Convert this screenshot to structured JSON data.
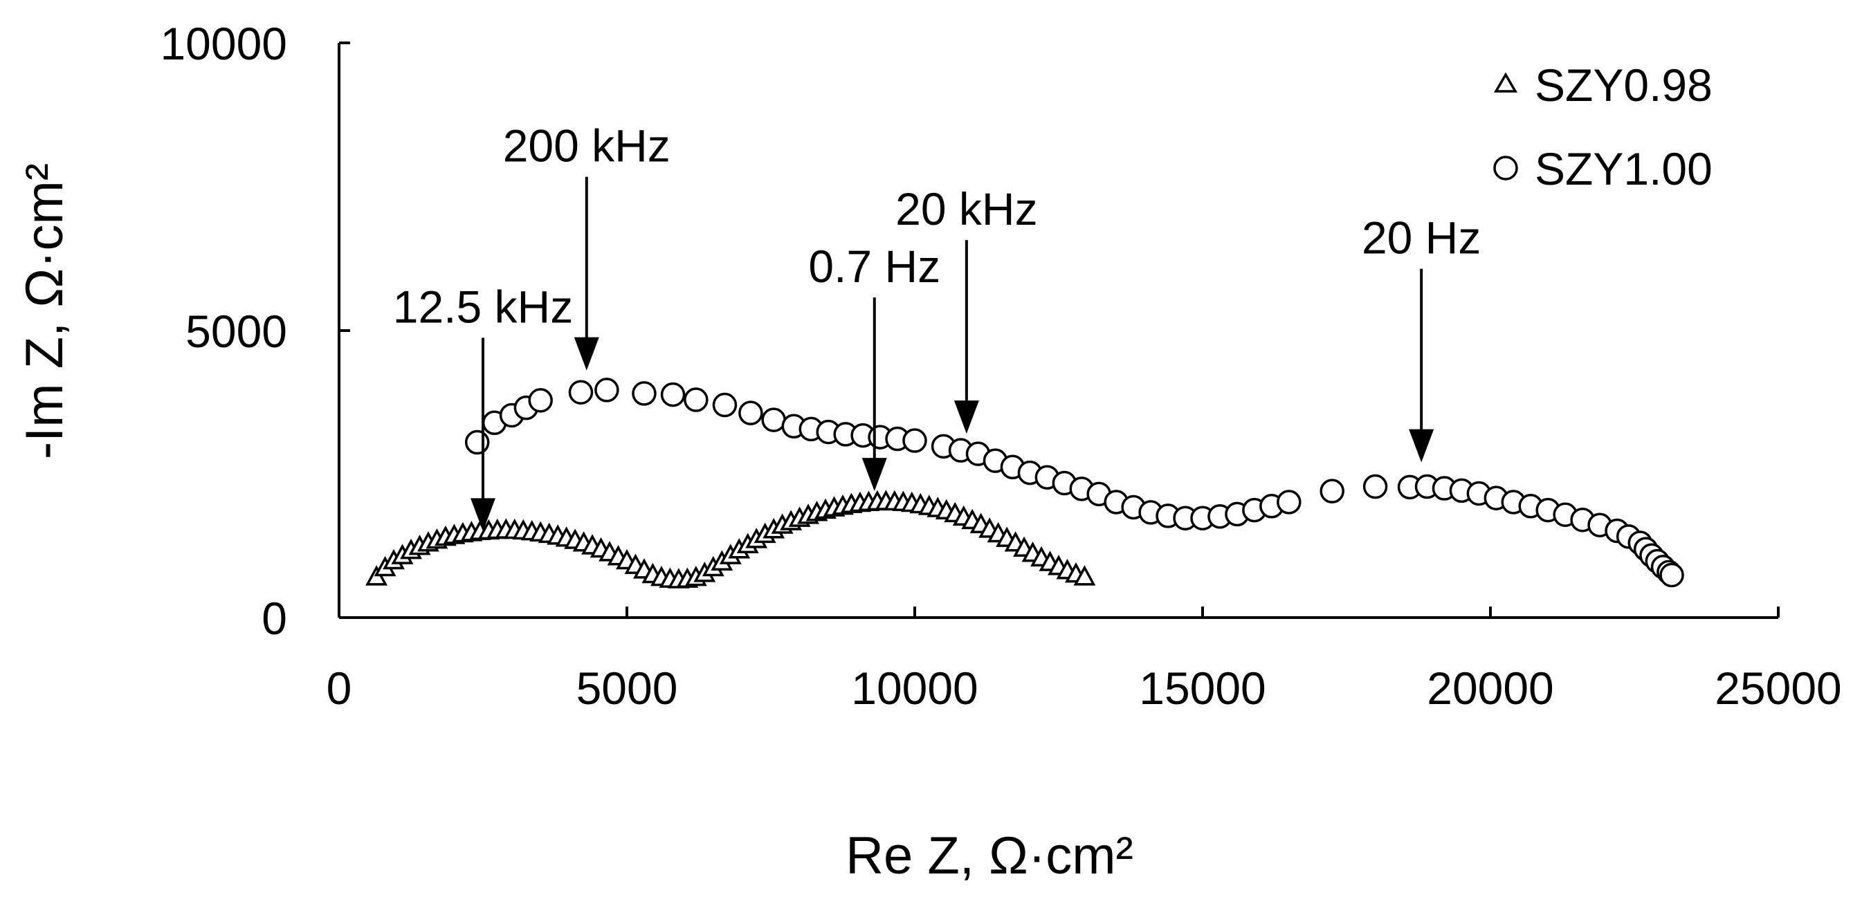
{
  "chart_data": {
    "type": "scatter",
    "title": "",
    "xlabel": "Re Z, Ω·cm²",
    "ylabel": "-Im Z, Ω·cm²",
    "xlim": [
      0,
      25000
    ],
    "ylim": [
      0,
      10000
    ],
    "x_ticks": [
      "0",
      "5000",
      "10000",
      "15000",
      "20000",
      "25000"
    ],
    "y_ticks": [
      "0",
      "5000",
      "10000"
    ],
    "grid": false,
    "legend": "top-right",
    "series": [
      {
        "name": "SZY0.98",
        "marker": "triangle",
        "points": [
          [
            650,
            700
          ],
          [
            800,
            860
          ],
          [
            950,
            980
          ],
          [
            1100,
            1070
          ],
          [
            1250,
            1160
          ],
          [
            1400,
            1230
          ],
          [
            1550,
            1290
          ],
          [
            1700,
            1340
          ],
          [
            1850,
            1390
          ],
          [
            2000,
            1420
          ],
          [
            2150,
            1450
          ],
          [
            2300,
            1470
          ],
          [
            2450,
            1490
          ],
          [
            2600,
            1500
          ],
          [
            2750,
            1510
          ],
          [
            2900,
            1515
          ],
          [
            3050,
            1510
          ],
          [
            3200,
            1500
          ],
          [
            3350,
            1485
          ],
          [
            3500,
            1465
          ],
          [
            3650,
            1440
          ],
          [
            3800,
            1410
          ],
          [
            3950,
            1375
          ],
          [
            4100,
            1335
          ],
          [
            4250,
            1290
          ],
          [
            4400,
            1240
          ],
          [
            4550,
            1185
          ],
          [
            4700,
            1120
          ],
          [
            4850,
            1050
          ],
          [
            5000,
            980
          ],
          [
            5150,
            900
          ],
          [
            5300,
            820
          ],
          [
            5450,
            740
          ],
          [
            5600,
            690
          ],
          [
            5750,
            660
          ],
          [
            5900,
            650
          ],
          [
            6050,
            660
          ],
          [
            6200,
            690
          ],
          [
            6350,
            760
          ],
          [
            6500,
            860
          ],
          [
            6650,
            960
          ],
          [
            6800,
            1070
          ],
          [
            6950,
            1170
          ],
          [
            7100,
            1260
          ],
          [
            7250,
            1350
          ],
          [
            7400,
            1440
          ],
          [
            7550,
            1520
          ],
          [
            7700,
            1600
          ],
          [
            7850,
            1660
          ],
          [
            8000,
            1720
          ],
          [
            8150,
            1770
          ],
          [
            8300,
            1820
          ],
          [
            8450,
            1860
          ],
          [
            8600,
            1900
          ],
          [
            8750,
            1930
          ],
          [
            8900,
            1960
          ],
          [
            9050,
            1980
          ],
          [
            9200,
            1995
          ],
          [
            9350,
            2005
          ],
          [
            9500,
            2010
          ],
          [
            9650,
            2005
          ],
          [
            9800,
            1995
          ],
          [
            9950,
            1980
          ],
          [
            10100,
            1955
          ],
          [
            10250,
            1925
          ],
          [
            10400,
            1890
          ],
          [
            10550,
            1850
          ],
          [
            10700,
            1800
          ],
          [
            10850,
            1740
          ],
          [
            11000,
            1680
          ],
          [
            11150,
            1610
          ],
          [
            11300,
            1530
          ],
          [
            11450,
            1450
          ],
          [
            11600,
            1370
          ],
          [
            11750,
            1290
          ],
          [
            11900,
            1200
          ],
          [
            12050,
            1110
          ],
          [
            12200,
            1030
          ],
          [
            12350,
            950
          ],
          [
            12500,
            880
          ],
          [
            12650,
            810
          ],
          [
            12800,
            750
          ],
          [
            12950,
            700
          ]
        ]
      },
      {
        "name": "SZY1.00",
        "marker": "circle",
        "points": [
          [
            2400,
            3050
          ],
          [
            2700,
            3390
          ],
          [
            3000,
            3520
          ],
          [
            3250,
            3650
          ],
          [
            3500,
            3780
          ],
          [
            4200,
            3920
          ],
          [
            4650,
            3960
          ],
          [
            5300,
            3900
          ],
          [
            5800,
            3880
          ],
          [
            6200,
            3790
          ],
          [
            6700,
            3700
          ],
          [
            7150,
            3560
          ],
          [
            7550,
            3440
          ],
          [
            7900,
            3330
          ],
          [
            8200,
            3280
          ],
          [
            8500,
            3230
          ],
          [
            8800,
            3190
          ],
          [
            9100,
            3170
          ],
          [
            9400,
            3140
          ],
          [
            9700,
            3110
          ],
          [
            10000,
            3080
          ],
          [
            10500,
            2980
          ],
          [
            10800,
            2910
          ],
          [
            11100,
            2850
          ],
          [
            11400,
            2730
          ],
          [
            11700,
            2620
          ],
          [
            12000,
            2520
          ],
          [
            12300,
            2440
          ],
          [
            12600,
            2340
          ],
          [
            12900,
            2240
          ],
          [
            13200,
            2150
          ],
          [
            13500,
            2010
          ],
          [
            13800,
            1920
          ],
          [
            14100,
            1830
          ],
          [
            14400,
            1770
          ],
          [
            14700,
            1730
          ],
          [
            15000,
            1730
          ],
          [
            15300,
            1760
          ],
          [
            15600,
            1800
          ],
          [
            15900,
            1870
          ],
          [
            16200,
            1940
          ],
          [
            16500,
            2010
          ],
          [
            17250,
            2200
          ],
          [
            18000,
            2280
          ],
          [
            18600,
            2270
          ],
          [
            18900,
            2280
          ],
          [
            19200,
            2250
          ],
          [
            19500,
            2210
          ],
          [
            19800,
            2160
          ],
          [
            20100,
            2080
          ],
          [
            20400,
            2010
          ],
          [
            20700,
            1940
          ],
          [
            21000,
            1870
          ],
          [
            21300,
            1790
          ],
          [
            21600,
            1700
          ],
          [
            21900,
            1610
          ],
          [
            22200,
            1510
          ],
          [
            22400,
            1410
          ],
          [
            22600,
            1300
          ],
          [
            22700,
            1190
          ],
          [
            22800,
            1080
          ],
          [
            22900,
            980
          ],
          [
            23000,
            880
          ],
          [
            23100,
            790
          ],
          [
            23150,
            740
          ]
        ]
      }
    ],
    "annotations": [
      {
        "label": "12.5 kHz",
        "x": 2500,
        "y": 1500
      },
      {
        "label": "200 kHz",
        "x": 4300,
        "y": 4300
      },
      {
        "label": "0.7 Hz",
        "x": 9300,
        "y": 2200
      },
      {
        "label": "20 kHz",
        "x": 10900,
        "y": 3200
      },
      {
        "label": "20 Hz",
        "x": 18800,
        "y": 2700
      }
    ]
  }
}
